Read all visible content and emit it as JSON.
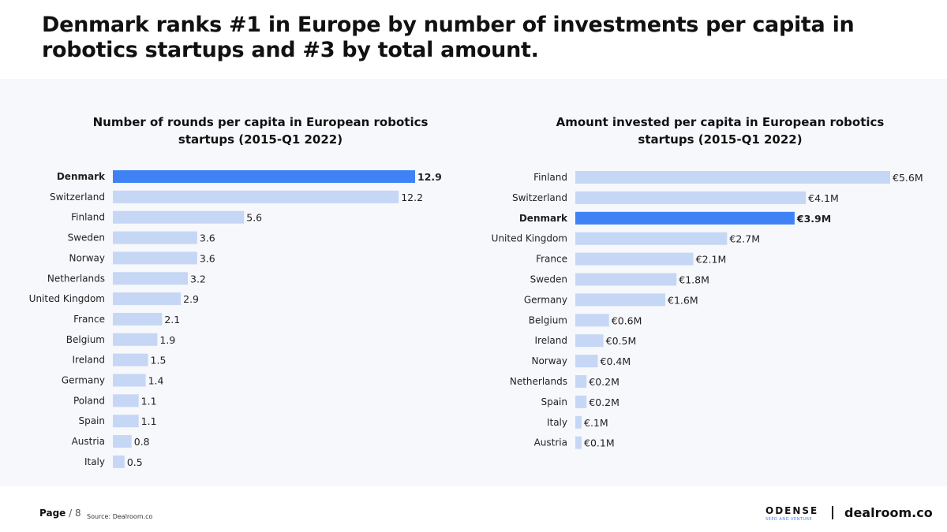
{
  "title": "Denmark ranks #1 in Europe by number of investments per capita in robotics startups and #3 by total amount.",
  "colors": {
    "highlight": "#3f82f5",
    "bar": "#c6d7f5",
    "panel": "#f7f8fc"
  },
  "chart_data": [
    {
      "type": "bar",
      "orientation": "horizontal",
      "title": "Number of rounds per capita in European robotics startups (2015-Q1 2022)",
      "highlight": "Denmark",
      "categories": [
        "Denmark",
        "Switzerland",
        "Finland",
        "Sweden",
        "Norway",
        "Netherlands",
        "United Kingdom",
        "France",
        "Belgium",
        "Ireland",
        "Germany",
        "Poland",
        "Spain",
        "Austria",
        "Italy"
      ],
      "values": [
        12.9,
        12.2,
        5.6,
        3.6,
        3.6,
        3.2,
        2.9,
        2.1,
        1.9,
        1.5,
        1.4,
        1.1,
        1.1,
        0.8,
        0.5
      ],
      "labels": [
        "12.9",
        "12.2",
        "5.6",
        "3.6",
        "3.6",
        "3.2",
        "2.9",
        "2.1",
        "1.9",
        "1.5",
        "1.4",
        "1.1",
        "1.1",
        "0.8",
        "0.5"
      ]
    },
    {
      "type": "bar",
      "orientation": "horizontal",
      "title": "Amount invested per capita in European robotics startups (2015-Q1 2022)",
      "highlight": "Denmark",
      "categories": [
        "Finland",
        "Switzerland",
        "Denmark",
        "United Kingdom",
        "France",
        "Sweden",
        "Germany",
        "Belgium",
        "Ireland",
        "Norway",
        "Netherlands",
        "Spain",
        "Italy",
        "Austria"
      ],
      "values": [
        5.6,
        4.1,
        3.9,
        2.7,
        2.1,
        1.8,
        1.6,
        0.6,
        0.5,
        0.4,
        0.2,
        0.2,
        0.1,
        0.1
      ],
      "labels": [
        "€5.6M",
        "€4.1M",
        "€3.9M",
        "€2.7M",
        "€2.1M",
        "€1.8M",
        "€1.6M",
        "€0.6M",
        "€0.5M",
        "€0.4M",
        "€0.2M",
        "€0.2M",
        "€.1M",
        "€0.1M"
      ]
    }
  ],
  "footer": {
    "page_label": "Page",
    "page_number": "/ 8",
    "source": "Source: Dealroom.co",
    "logo1": "ODENSE",
    "logo1_sub": "SEED AND VENTURE",
    "logo2": "dealroom.co"
  }
}
